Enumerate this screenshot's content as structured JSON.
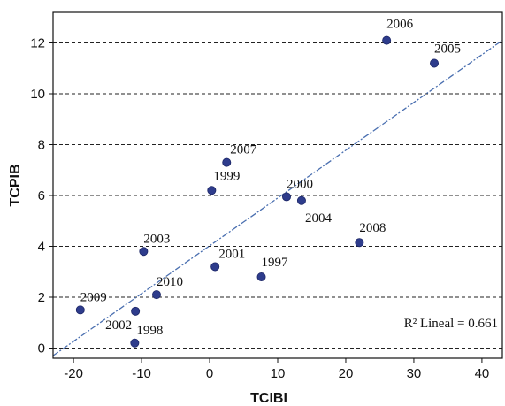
{
  "chart_data": {
    "type": "scatter",
    "xlabel": "TCIBI",
    "ylabel": "TCPIB",
    "xlim": [
      -23,
      43
    ],
    "ylim": [
      -0.4,
      13.2
    ],
    "xticks": [
      -20,
      -10,
      0,
      10,
      20,
      30,
      40
    ],
    "yticks": [
      0,
      2,
      4,
      6,
      8,
      10,
      12
    ],
    "grid": "horizontal-dashed",
    "points": [
      {
        "label": "2006",
        "x": 26.0,
        "y": 12.1
      },
      {
        "label": "2005",
        "x": 33.0,
        "y": 11.2
      },
      {
        "label": "2007",
        "x": 2.5,
        "y": 7.3
      },
      {
        "label": "1999",
        "x": 0.3,
        "y": 6.2
      },
      {
        "label": "2000",
        "x": 11.3,
        "y": 5.95
      },
      {
        "label": "2004",
        "x": 13.5,
        "y": 5.8
      },
      {
        "label": "2008",
        "x": 22.0,
        "y": 4.15
      },
      {
        "label": "2003",
        "x": -9.7,
        "y": 3.8
      },
      {
        "label": "2001",
        "x": 0.8,
        "y": 3.2
      },
      {
        "label": "1997",
        "x": 7.6,
        "y": 2.8
      },
      {
        "label": "2010",
        "x": -7.8,
        "y": 2.1
      },
      {
        "label": "2009",
        "x": -19.0,
        "y": 1.5
      },
      {
        "label": "2002",
        "x": -10.9,
        "y": 1.45
      },
      {
        "label": "1998",
        "x": -11.0,
        "y": 0.2
      }
    ],
    "fit_line": {
      "x1": -23,
      "y1": -0.3,
      "x2": 43,
      "y2": 12.1
    },
    "annotation": "R² Lineal = 0.661",
    "colors": {
      "point": "#2e3c8c",
      "fit": "#4a6fb0",
      "grid": "#222222"
    }
  }
}
